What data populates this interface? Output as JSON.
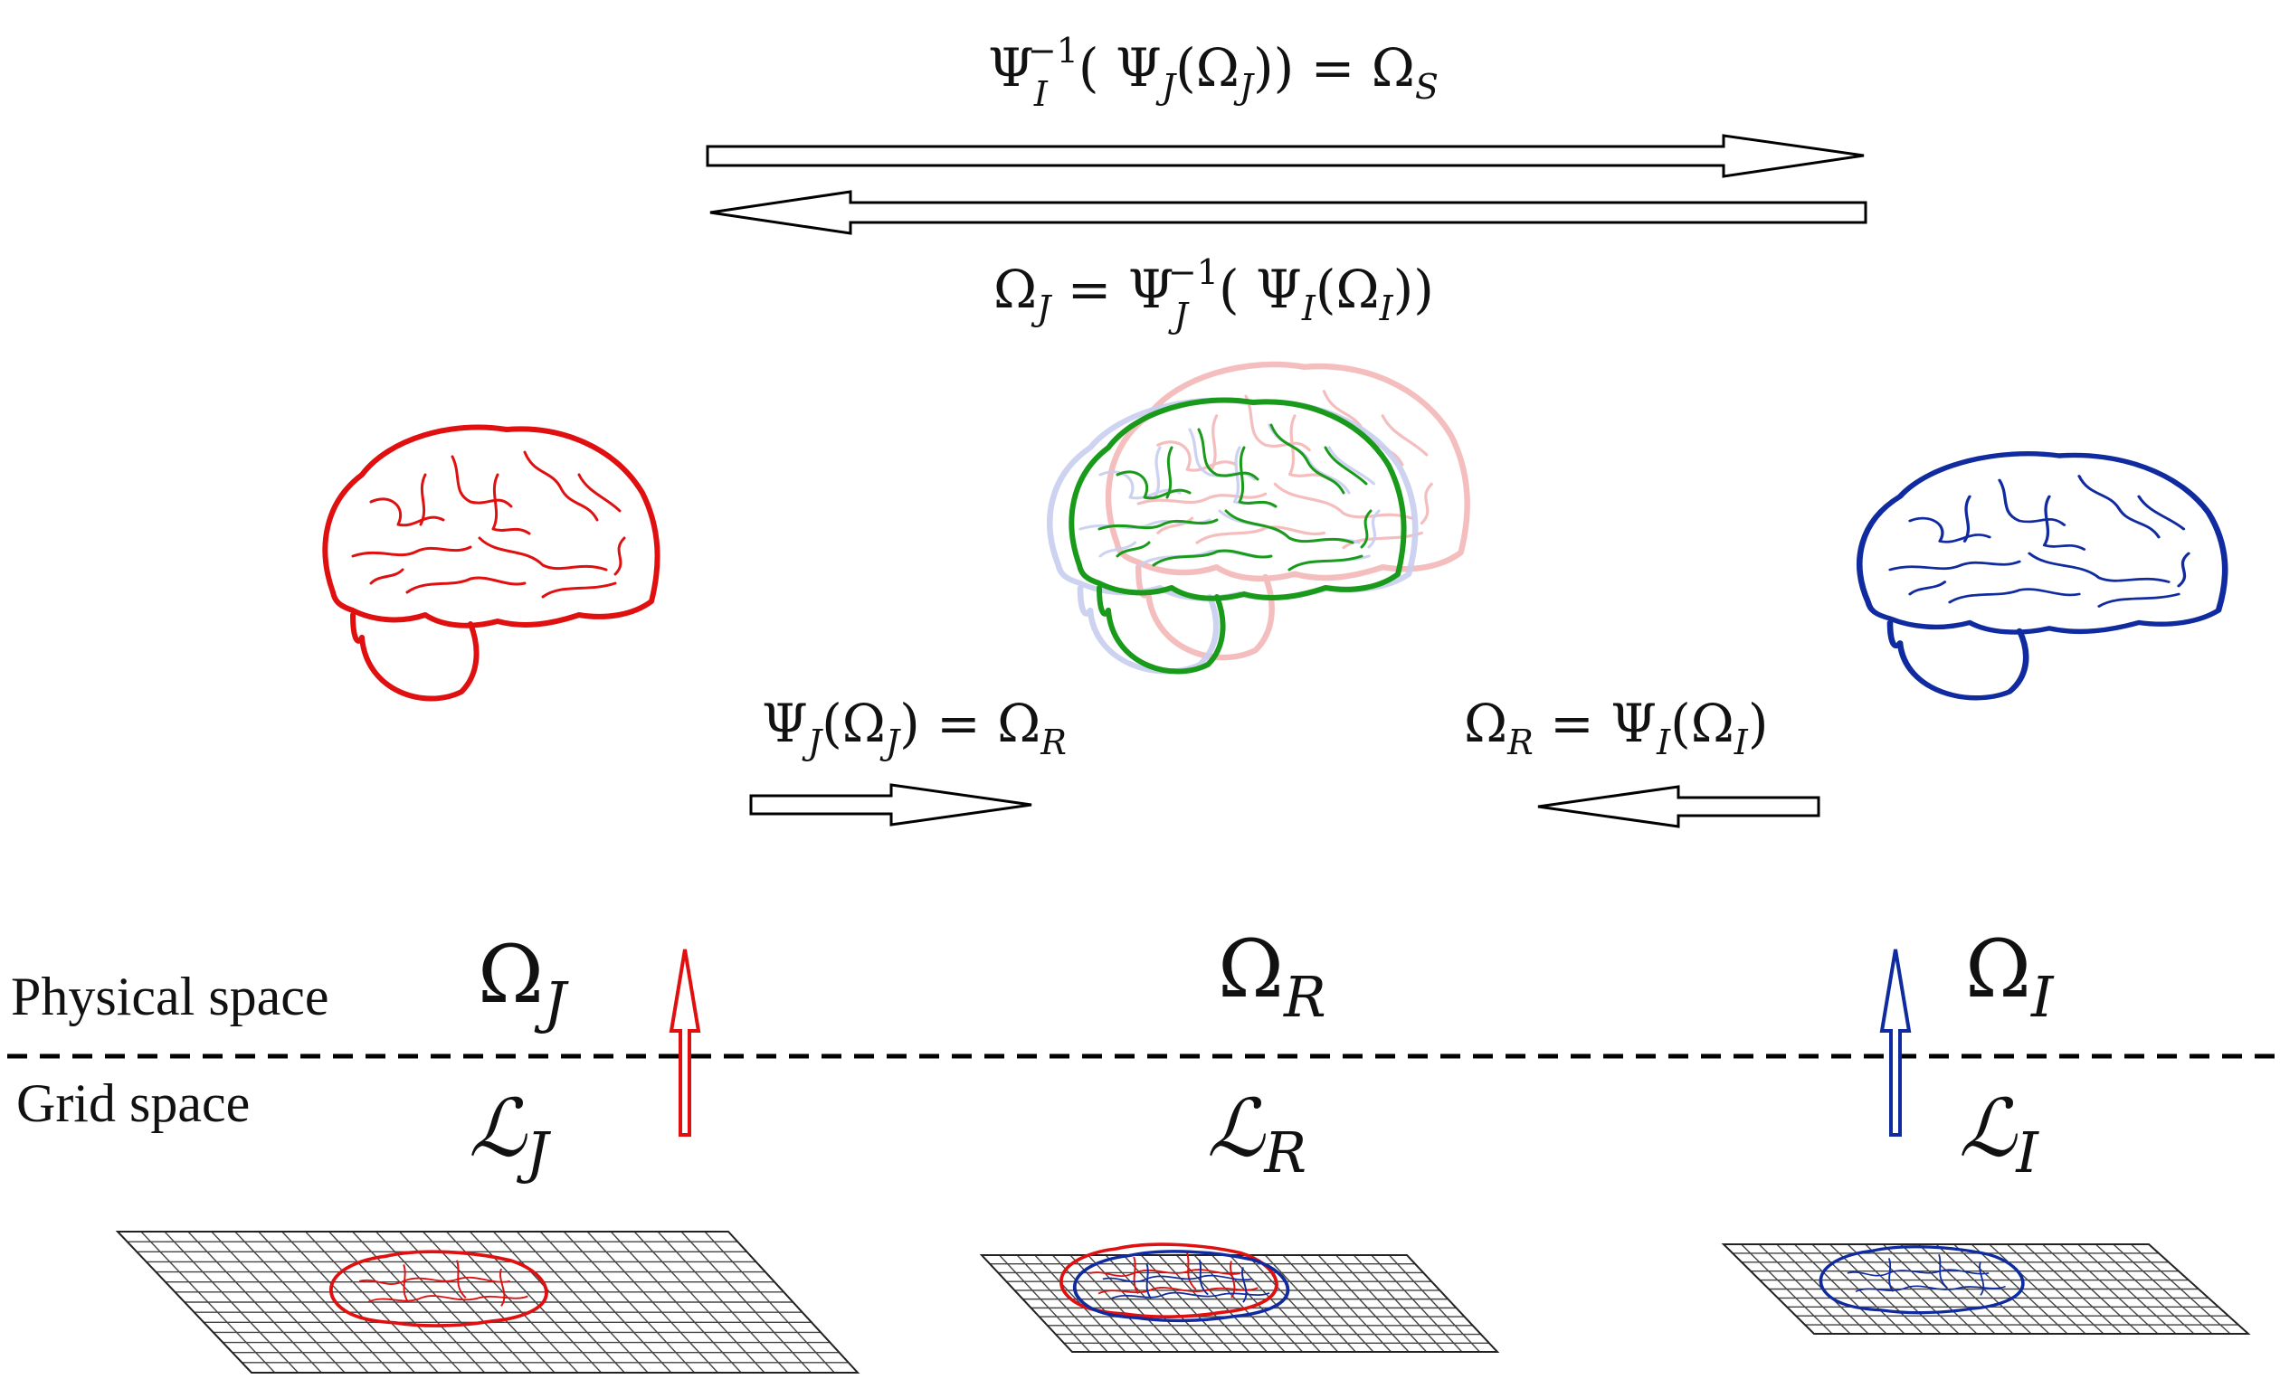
{
  "labels": {
    "physical_space": "Physical space",
    "grid_space": "Grid space"
  },
  "equations": {
    "top_forward": {
      "psi": "Ψ",
      "sub_i": "I",
      "sup_inv": "−1",
      "open": "( Ψ",
      "sub_j": "J",
      "omega_open": "(Ω",
      "sub_j2": "J",
      "close_eq": ")) = Ω",
      "sub_s": "S"
    },
    "top_backward": {
      "omega": "Ω",
      "sub_j": "J",
      "eq_psi": " = Ψ",
      "sub_j2": "J",
      "sup_inv": "−1",
      "open": "( Ψ",
      "sub_i": "I",
      "omega_open": "(Ω",
      "sub_i2": "I",
      "close": "))"
    },
    "left_map": {
      "psi": "Ψ",
      "sub_j": "J",
      "omega_open": "(Ω",
      "sub_j2": "J",
      "close_eq": ") = Ω",
      "sub_r": "R"
    },
    "right_map": {
      "omega": "Ω",
      "sub_r": "R",
      "eq_psi": " = Ψ",
      "sub_i": "I",
      "omega_open": "(Ω",
      "sub_i2": "I",
      "close": ")"
    }
  },
  "spaces": {
    "omega_j": {
      "base": "Ω",
      "sub": "J"
    },
    "omega_r": {
      "base": "Ω",
      "sub": "R"
    },
    "omega_i": {
      "base": "Ω",
      "sub": "I"
    },
    "lattice_j": {
      "base": "ℒ",
      "sub": "J"
    },
    "lattice_r": {
      "base": "ℒ",
      "sub": "R"
    },
    "lattice_i": {
      "base": "ℒ",
      "sub": "I"
    }
  },
  "colors": {
    "brain_j": "#e01010",
    "brain_i": "#102aa0",
    "brain_r": "#1a9a1a",
    "brain_j_faded": "#f4b8b8",
    "brain_i_faded": "#c8cef0"
  }
}
